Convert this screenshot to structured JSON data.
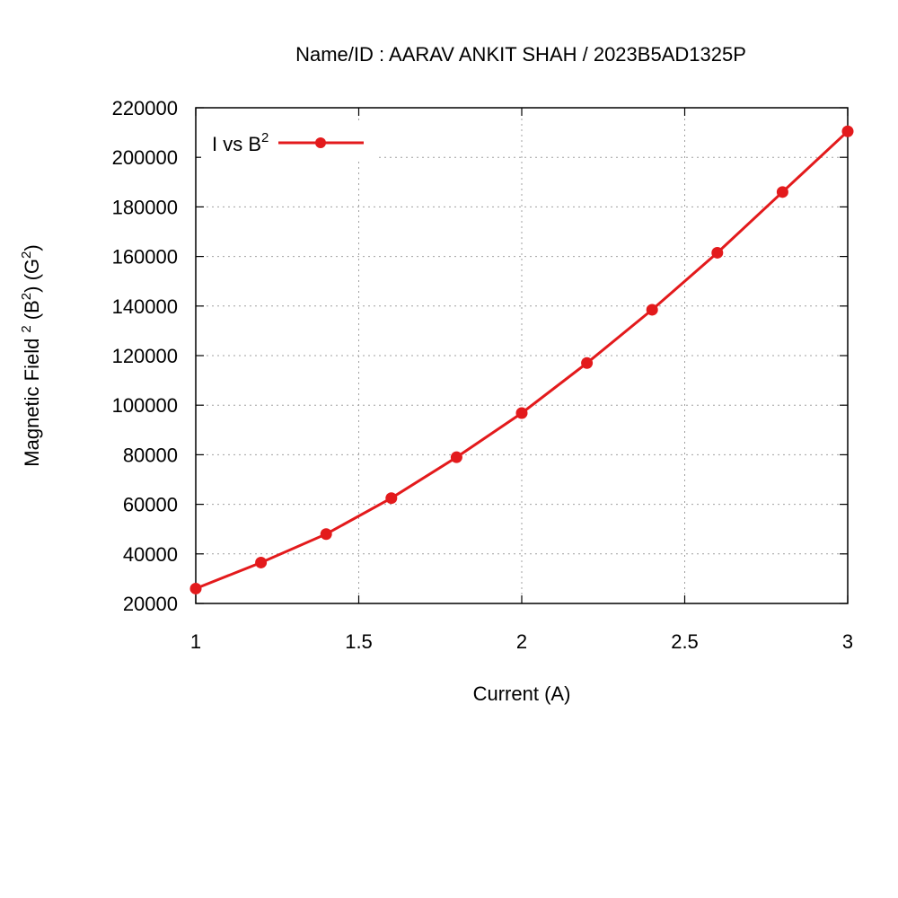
{
  "chart_data": {
    "type": "line",
    "title": "Name/ID : AARAV ANKIT SHAH / 2023B5AD1325P",
    "xlabel": "Current (A)",
    "ylabel": {
      "prefix": "Magnetic Field",
      "sup1": "2",
      "middle_a": " (B",
      "sup2": "2",
      "middle_b": ") (G",
      "sup3": "2",
      "suffix": ")"
    },
    "xlim": [
      1,
      3
    ],
    "ylim": [
      20000,
      220000
    ],
    "x_ticks": [
      1,
      1.5,
      2,
      2.5,
      3
    ],
    "x_tick_labels": [
      "1",
      "1.5",
      "2",
      "2.5",
      "3"
    ],
    "y_ticks": [
      20000,
      40000,
      60000,
      80000,
      100000,
      120000,
      140000,
      160000,
      180000,
      200000,
      220000
    ],
    "y_tick_labels": [
      "20000",
      "40000",
      "60000",
      "80000",
      "100000",
      "120000",
      "140000",
      "160000",
      "180000",
      "200000",
      "220000"
    ],
    "grid": true,
    "legend_position": "top-left",
    "legend": {
      "text": "I vs B",
      "sup": "2"
    },
    "series": [
      {
        "name": "I vs B2",
        "color": "#e31a1c",
        "marker": "circle",
        "x": [
          1.0,
          1.2,
          1.4,
          1.6,
          1.8,
          2.0,
          2.2,
          2.4,
          2.6,
          2.8,
          3.0
        ],
        "y": [
          26000,
          36500,
          48000,
          62500,
          79000,
          96800,
          117000,
          138500,
          161500,
          186000,
          210500
        ]
      }
    ]
  }
}
